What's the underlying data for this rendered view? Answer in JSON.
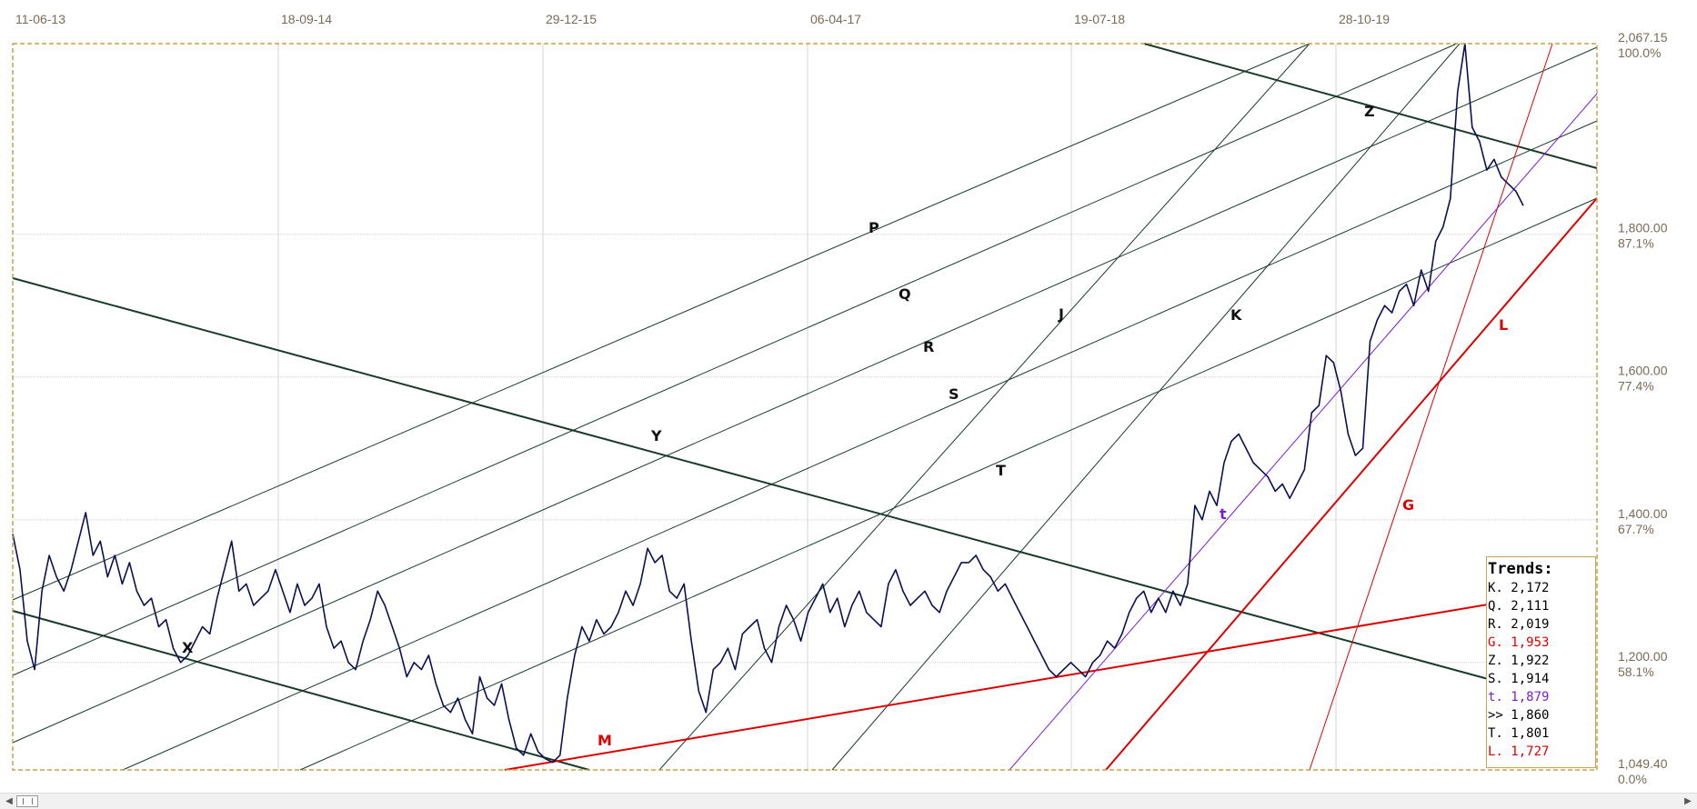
{
  "chart_data": {
    "type": "line",
    "title": "",
    "x_tick_labels": [
      "11-06-13",
      "18-09-14",
      "29-12-15",
      "06-04-17",
      "19-07-18",
      "28-10-19"
    ],
    "y_price_labels": [
      "2,067.15",
      "1,800.00",
      "1,600.00",
      "1,400.00",
      "1,200.00",
      "1,049.40"
    ],
    "y_percent_labels": [
      "100.0%",
      "87.1%",
      "77.4%",
      "67.7%",
      "58.1%",
      "0.0%"
    ],
    "ylim": [
      1049.4,
      2067.15
    ],
    "grid": true,
    "series": [
      {
        "values": [
          1380,
          1330,
          1230,
          1190,
          1300,
          1350,
          1320,
          1300,
          1330,
          1370,
          1410,
          1350,
          1370,
          1320,
          1350,
          1310,
          1340,
          1300,
          1280,
          1290,
          1250,
          1260,
          1220,
          1200,
          1210,
          1230,
          1250,
          1240,
          1290,
          1330,
          1370,
          1300,
          1310,
          1280,
          1290,
          1300,
          1330,
          1300,
          1270,
          1310,
          1280,
          1290,
          1310,
          1250,
          1220,
          1230,
          1200,
          1190,
          1230,
          1260,
          1300,
          1280,
          1250,
          1220,
          1180,
          1200,
          1190,
          1210,
          1170,
          1140,
          1130,
          1150,
          1120,
          1100,
          1180,
          1150,
          1140,
          1170,
          1120,
          1080,
          1070,
          1100,
          1075,
          1065,
          1060,
          1070,
          1150,
          1210,
          1250,
          1230,
          1260,
          1240,
          1250,
          1270,
          1300,
          1280,
          1310,
          1360,
          1340,
          1350,
          1300,
          1290,
          1310,
          1230,
          1160,
          1130,
          1190,
          1200,
          1220,
          1190,
          1240,
          1250,
          1260,
          1220,
          1200,
          1250,
          1280,
          1260,
          1230,
          1270,
          1290,
          1310,
          1270,
          1290,
          1250,
          1280,
          1300,
          1270,
          1260,
          1250,
          1310,
          1330,
          1300,
          1280,
          1290,
          1300,
          1280,
          1270,
          1300,
          1320,
          1340,
          1340,
          1350,
          1330,
          1320,
          1300,
          1310,
          1290,
          1270,
          1250,
          1230,
          1210,
          1190,
          1180,
          1190,
          1200,
          1190,
          1180,
          1200,
          1210,
          1230,
          1220,
          1240,
          1270,
          1290,
          1300,
          1270,
          1290,
          1270,
          1300,
          1280,
          1310,
          1420,
          1400,
          1440,
          1420,
          1480,
          1510,
          1520,
          1500,
          1480,
          1470,
          1460,
          1440,
          1450,
          1430,
          1450,
          1470,
          1550,
          1560,
          1630,
          1620,
          1580,
          1520,
          1490,
          1500,
          1650,
          1680,
          1700,
          1690,
          1720,
          1730,
          1700,
          1750,
          1720,
          1790,
          1810,
          1850,
          2000,
          2067,
          1950,
          1930,
          1890,
          1905,
          1880,
          1870,
          1860,
          1840
        ]
      }
    ],
    "trend_lines": [
      {
        "label": "P",
        "color": "#1a3a2a"
      },
      {
        "label": "Q",
        "color": "#1a3a2a"
      },
      {
        "label": "R",
        "color": "#1a3a2a"
      },
      {
        "label": "S",
        "color": "#1a3a2a"
      },
      {
        "label": "T",
        "color": "#1a3a2a"
      },
      {
        "label": "J",
        "color": "#1a3a2a"
      },
      {
        "label": "K",
        "color": "#1a3a2a"
      },
      {
        "label": "Y",
        "color": "#1a3a2a"
      },
      {
        "label": "X",
        "color": "#1a3a2a"
      },
      {
        "label": "Z",
        "color": "#1a3a2a"
      },
      {
        "label": "M",
        "color": "#dd0000"
      },
      {
        "label": "L",
        "color": "#dd0000"
      },
      {
        "label": "G",
        "color": "#dd0000"
      },
      {
        "label": "t",
        "color": "#7a1fd0"
      }
    ]
  },
  "trends_panel": {
    "title": "Trends:",
    "rows": [
      {
        "text": "K. 2,172",
        "color": "#000000"
      },
      {
        "text": "Q. 2,111",
        "color": "#000000"
      },
      {
        "text": "R. 2,019",
        "color": "#000000"
      },
      {
        "text": "G. 1,953",
        "color": "#dd0000"
      },
      {
        "text": "Z. 1,922",
        "color": "#000000"
      },
      {
        "text": "S. 1,914",
        "color": "#000000"
      },
      {
        "text": "t. 1,879",
        "color": "#7a1fd0"
      },
      {
        "text": ">> 1,860",
        "color": "#000000"
      },
      {
        "text": "T. 1,801",
        "color": "#000000"
      },
      {
        "text": "L. 1,727",
        "color": "#dd0000"
      }
    ]
  },
  "scrollbar": {
    "left_arrow": "◀",
    "right_arrow": "▶"
  },
  "colors": {
    "price": "#0b1050",
    "trend_dark": "#1a3a2a",
    "trend_red": "#dd0000",
    "trend_purple": "#7a1fd0",
    "frame": "#c8a040",
    "grid": "#d4d4d4",
    "axis_text": "#7a6a55"
  }
}
